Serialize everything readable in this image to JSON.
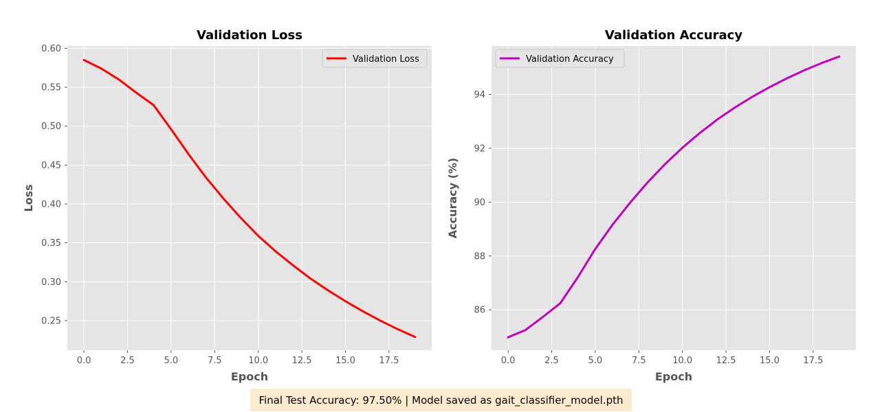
{
  "footer": {
    "text": "Final Test Accuracy: 97.50% | Model saved as gait_classifier_model.pth",
    "background": "#fdebd0"
  },
  "colors": {
    "panel_bg": "#e5e5e5",
    "grid": "#ffffff",
    "tick_text": "#555555",
    "title_text": "#000000"
  },
  "chart_data": [
    {
      "type": "line",
      "title": "Validation Loss",
      "xlabel": "Epoch",
      "ylabel": "Loss",
      "xlim": [
        -0.95,
        19.95
      ],
      "ylim": [
        0.212,
        0.603
      ],
      "xticks": [
        0.0,
        2.5,
        5.0,
        7.5,
        10.0,
        12.5,
        15.0,
        17.5
      ],
      "xtick_labels": [
        "0.0",
        "2.5",
        "5.0",
        "7.5",
        "10.0",
        "12.5",
        "15.0",
        "17.5"
      ],
      "yticks": [
        0.25,
        0.3,
        0.35,
        0.4,
        0.45,
        0.5,
        0.55,
        0.6
      ],
      "ytick_labels": [
        "0.25",
        "0.30",
        "0.35",
        "0.40",
        "0.45",
        "0.50",
        "0.55",
        "0.60"
      ],
      "grid": true,
      "legend_position": "upper right",
      "series": [
        {
          "name": "Validation Loss",
          "color": "#ff0000",
          "x": [
            0,
            1,
            2,
            3,
            4,
            5,
            6,
            7,
            8,
            9,
            10,
            11,
            12,
            13,
            14,
            15,
            16,
            17,
            18,
            19
          ],
          "y": [
            0.585,
            0.574,
            0.56,
            0.543,
            0.527,
            0.496,
            0.464,
            0.434,
            0.407,
            0.382,
            0.359,
            0.339,
            0.321,
            0.304,
            0.289,
            0.275,
            0.262,
            0.25,
            0.239,
            0.229
          ]
        }
      ]
    },
    {
      "type": "line",
      "title": "Validation Accuracy",
      "xlabel": "Epoch",
      "ylabel": "Accuracy (%)",
      "xlim": [
        -0.95,
        19.95
      ],
      "ylim": [
        84.5,
        95.8
      ],
      "xticks": [
        0.0,
        2.5,
        5.0,
        7.5,
        10.0,
        12.5,
        15.0,
        17.5
      ],
      "xtick_labels": [
        "0.0",
        "2.5",
        "5.0",
        "7.5",
        "10.0",
        "12.5",
        "15.0",
        "17.5"
      ],
      "yticks": [
        86,
        88,
        90,
        92,
        94
      ],
      "ytick_labels": [
        "86",
        "88",
        "90",
        "92",
        "94"
      ],
      "grid": true,
      "legend_position": "upper left",
      "series": [
        {
          "name": "Validation Accuracy",
          "color": "#bf00bf",
          "x": [
            0,
            1,
            2,
            3,
            4,
            5,
            6,
            7,
            8,
            9,
            10,
            11,
            12,
            13,
            14,
            15,
            16,
            17,
            18,
            19
          ],
          "y": [
            84.98,
            85.25,
            85.74,
            86.25,
            87.21,
            88.26,
            89.17,
            89.98,
            90.73,
            91.41,
            92.02,
            92.57,
            93.07,
            93.51,
            93.91,
            94.27,
            94.6,
            94.9,
            95.17,
            95.41
          ]
        }
      ]
    }
  ]
}
